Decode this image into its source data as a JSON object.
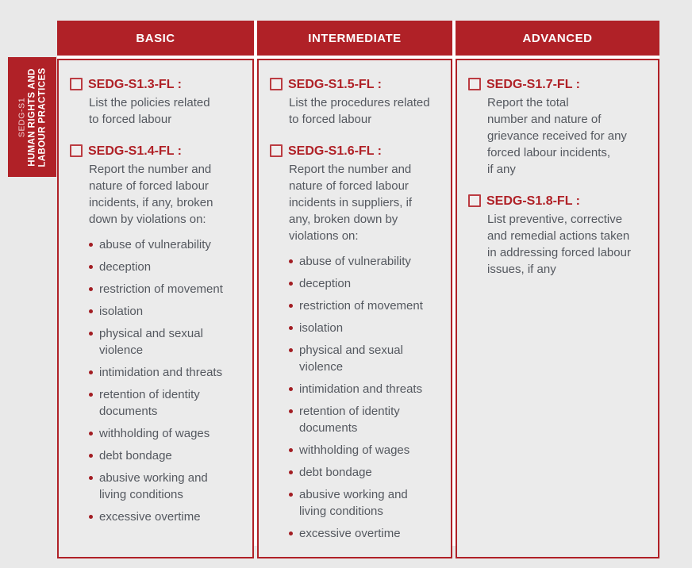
{
  "sidebar": {
    "code": "SEDG-S1",
    "title_line1": "HUMAN RIGHTS AND",
    "title_line2": "LABOUR PRACTICES"
  },
  "colors": {
    "accent_red": "#b02127",
    "checkbox_border_red": "#bb3c42",
    "bullet_red": "#a21d23",
    "body_text_gray": "#54585f",
    "page_background": "#e9e9e9",
    "column_background": "#ebebeb"
  },
  "columns": [
    {
      "header": "BASIC",
      "items": [
        {
          "label": "SEDG-S1.3-FL :",
          "description": "List the policies related\nto forced labour",
          "bullets": []
        },
        {
          "label": "SEDG-S1.4-FL :",
          "description": "Report the number and\nnature of forced labour\nincidents, if any, broken\ndown by violations on:",
          "bullets": [
            "abuse of vulnerability",
            "deception",
            "restriction of movement",
            "isolation",
            "physical and sexual\nviolence",
            "intimidation and threats",
            "retention of identity\ndocuments",
            "withholding of wages",
            "debt bondage",
            "abusive working and\nliving conditions",
            "excessive overtime"
          ]
        }
      ]
    },
    {
      "header": "INTERMEDIATE",
      "items": [
        {
          "label": "SEDG-S1.5-FL :",
          "description": "List the procedures related\nto forced labour",
          "bullets": []
        },
        {
          "label": "SEDG-S1.6-FL :",
          "description": "Report the number and\nnature of forced labour\nincidents in suppliers, if\nany, broken down by\nviolations on:",
          "bullets": [
            "abuse of vulnerability",
            "deception",
            "restriction of movement",
            "isolation",
            "physical and sexual\nviolence",
            "intimidation and threats",
            "retention of identity\ndocuments",
            "withholding of wages",
            "debt bondage",
            "abusive working and\nliving conditions",
            "excessive overtime"
          ]
        }
      ]
    },
    {
      "header": "ADVANCED",
      "items": [
        {
          "label": "SEDG-S1.7-FL :",
          "description": "Report the total\nnumber and nature of\ngrievance received for any\nforced labour incidents,\nif any",
          "bullets": []
        },
        {
          "label": "SEDG-S1.8-FL :",
          "description": "List preventive, corrective\nand remedial actions taken\nin addressing forced labour\nissues, if any",
          "bullets": []
        }
      ]
    }
  ]
}
